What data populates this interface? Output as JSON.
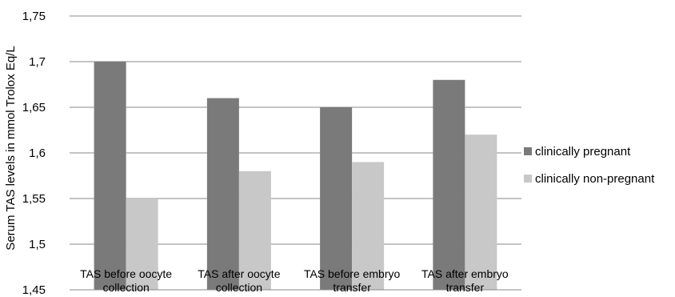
{
  "chart_data": {
    "type": "bar",
    "title": "",
    "xlabel": "",
    "ylabel": "Serum TAS levels in mmol Trolox Eq/L",
    "categories": [
      [
        "TAS before oocyte",
        "collection"
      ],
      [
        "TAS after oocyte",
        "collection"
      ],
      [
        "TAS before embryo",
        "transfer"
      ],
      [
        "TAS after embryo",
        "transfer"
      ]
    ],
    "series": [
      {
        "name": "clinically pregnant",
        "color": "#7a7a7a",
        "values": [
          1.7,
          1.66,
          1.65,
          1.68
        ]
      },
      {
        "name": "clinically non-pregnant",
        "color": "#c8c8c8",
        "values": [
          1.55,
          1.58,
          1.59,
          1.62
        ]
      }
    ],
    "ylim": [
      1.45,
      1.75
    ],
    "yticks": [
      1.45,
      1.5,
      1.55,
      1.6,
      1.65,
      1.7,
      1.75
    ],
    "ytick_labels": [
      "1,45",
      "1,5",
      "1,55",
      "1,6",
      "1,65",
      "1,7",
      "1,75"
    ],
    "grid": true,
    "legend_position": "right"
  }
}
